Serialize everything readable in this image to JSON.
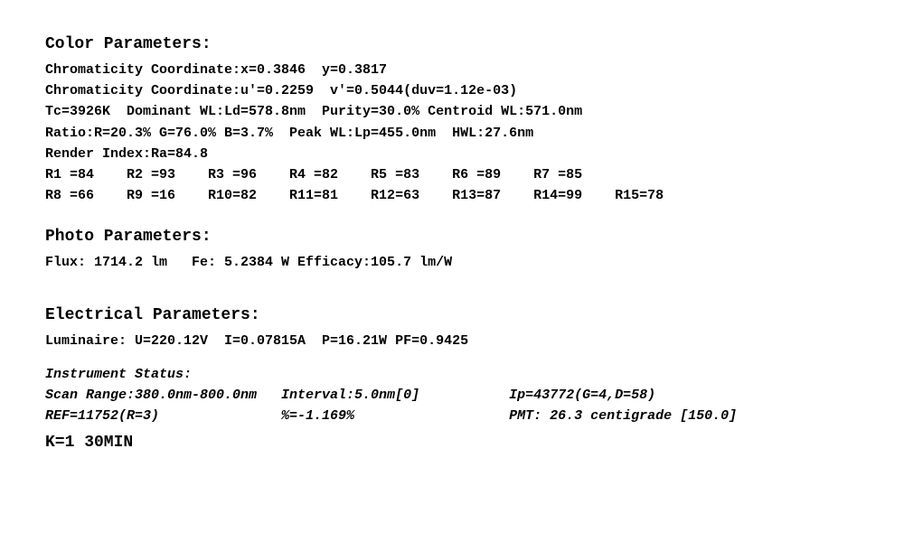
{
  "color": {
    "heading": "Color Parameters:",
    "chrom_xy": "Chromaticity Coordinate:x=0.3846  y=0.3817",
    "chrom_uv": "Chromaticity Coordinate:u'=0.2259  v'=0.5044(duv=1.12e-03)",
    "tc_line": "Tc=3926K  Dominant WL:Ld=578.8nm  Purity=30.0% Centroid WL:571.0nm",
    "ratio_line": "Ratio:R=20.3% G=76.0% B=3.7%  Peak WL:Lp=455.0nm  HWL:27.6nm",
    "ra_line": "Render Index:Ra=84.8",
    "r_row1": "R1 =84    R2 =93    R3 =96    R4 =82    R5 =83    R6 =89    R7 =85",
    "r_row2": "R8 =66    R9 =16    R10=82    R11=81    R12=63    R13=87    R14=99    R15=78"
  },
  "photo": {
    "heading": "Photo Parameters:",
    "line": "Flux: 1714.2 lm   Fe: 5.2384 W Efficacy:105.7 lm/W"
  },
  "electrical": {
    "heading": "Electrical Parameters:",
    "line": "Luminaire: U=220.12V  I=0.07815A  P=16.21W PF=0.9425"
  },
  "instrument": {
    "heading": "Instrument Status:",
    "row1": "Scan Range:380.0nm-800.0nm   Interval:5.0nm[0]           Ip=43772(G=4,D=58)",
    "row2": "REF=11752(R=3)               %=-1.169%                   PMT: 26.3 centigrade [150.0]"
  },
  "footer": {
    "k": "K=1 30MIN"
  }
}
